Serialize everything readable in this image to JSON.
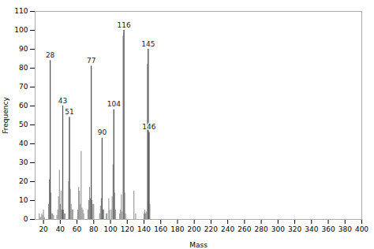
{
  "chart_data": {
    "type": "stem",
    "xlabel": "Mass",
    "ylabel": "Frequency",
    "x": [
      15,
      16,
      17,
      18,
      19,
      20,
      21,
      26,
      27,
      28,
      29,
      30,
      31,
      32,
      36,
      37,
      38,
      39,
      40,
      41,
      42,
      43,
      44,
      45,
      46,
      50,
      51,
      52,
      53,
      54,
      55,
      61,
      62,
      63,
      64,
      65,
      66,
      67,
      68,
      73,
      74,
      75,
      76,
      77,
      78,
      79,
      80,
      87,
      88,
      89,
      90,
      91,
      92,
      95,
      96,
      98,
      99,
      101,
      102,
      103,
      104,
      105,
      106,
      111,
      112,
      113,
      114,
      115,
      116,
      117,
      118,
      128,
      130,
      140,
      141,
      142,
      143,
      144,
      145,
      146,
      147
    ],
    "values": [
      3,
      1,
      1,
      3,
      2,
      5,
      1,
      8,
      21,
      84,
      14,
      3,
      3,
      2,
      2,
      5,
      12,
      26,
      8,
      15,
      5,
      60,
      5,
      3,
      3,
      20,
      54,
      16,
      8,
      5,
      5,
      5,
      17,
      15,
      8,
      36,
      6,
      5,
      3,
      5,
      10,
      17,
      11,
      81,
      10,
      8,
      8,
      3,
      7,
      11,
      43,
      5,
      5,
      3,
      3,
      11,
      5,
      5,
      12,
      29,
      58,
      14,
      5,
      3,
      5,
      13,
      4,
      97,
      100,
      14,
      3,
      15,
      3,
      3,
      5,
      3,
      4,
      82,
      90,
      46,
      8
    ],
    "color": "#888888",
    "annotations": [
      {
        "x": 28,
        "y": 84,
        "text": "28",
        "color": "#555555"
      },
      {
        "x": 43,
        "y": 60,
        "text": "43",
        "color": "#555555"
      },
      {
        "x": 51,
        "y": 54,
        "text": "51",
        "color": "#555555"
      },
      {
        "x": 77,
        "y": 81,
        "text": "77",
        "color": "#555555"
      },
      {
        "x": 90,
        "y": 43,
        "text": "90",
        "color": "#555555"
      },
      {
        "x": 104,
        "y": 58,
        "text": "104",
        "color": "#555555"
      },
      {
        "x": 116,
        "y": 100,
        "text": "116",
        "color": "#555555"
      },
      {
        "x": 145,
        "y": 90,
        "text": "145",
        "color": "#555555"
      },
      {
        "x": 146,
        "y": 46,
        "text": "146",
        "color": "#555555"
      }
    ],
    "xlim": [
      10,
      400
    ],
    "ylim": [
      0,
      110
    ],
    "xticks": [
      20,
      40,
      60,
      80,
      100,
      120,
      140,
      160,
      180,
      200,
      220,
      240,
      260,
      280,
      300,
      320,
      340,
      360,
      380,
      400
    ],
    "yticks": [
      0,
      10,
      20,
      30,
      40,
      50,
      60,
      70,
      80,
      90,
      100,
      110
    ],
    "grid": false
  }
}
